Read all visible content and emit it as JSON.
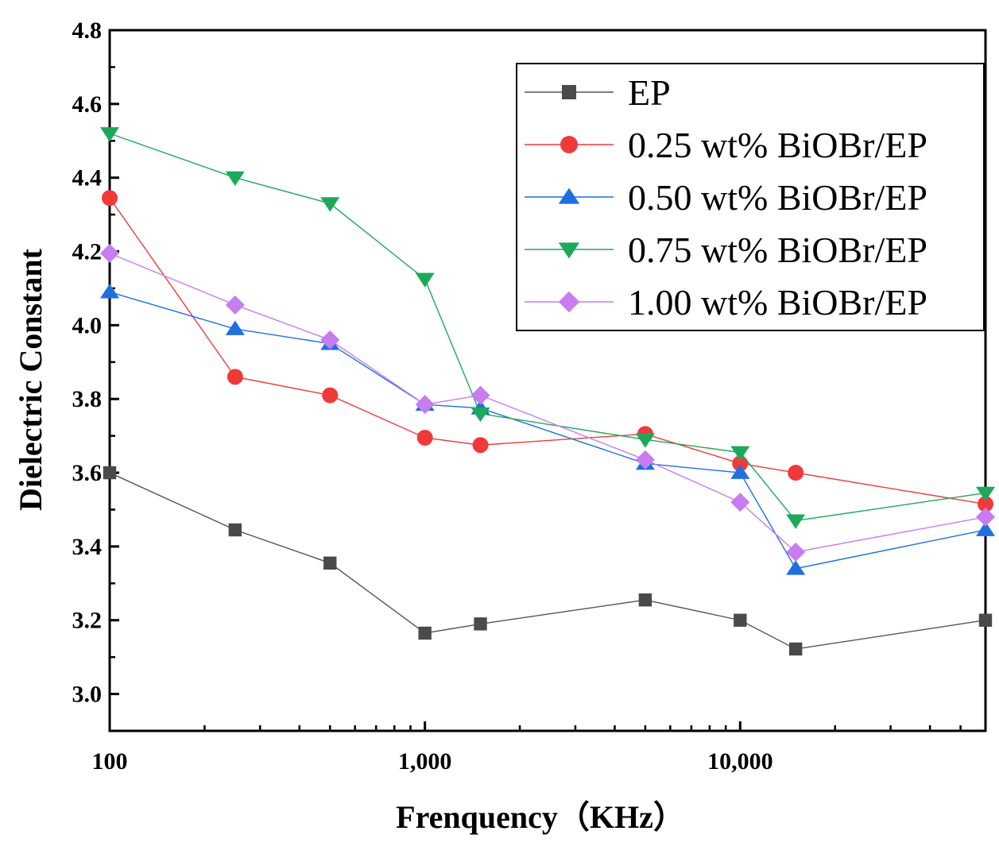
{
  "chart_data": {
    "type": "line",
    "title": "",
    "xlabel": "Frenquency（KHz）",
    "ylabel": "Dielectric Constant",
    "xscale": "log",
    "xlim": [
      100,
      60000
    ],
    "ylim": [
      2.9,
      4.8
    ],
    "grid": false,
    "legend_position": "top-right",
    "x": [
      100,
      250,
      500,
      1000,
      1500,
      5000,
      10000,
      15000,
      60000
    ],
    "x_ticks": [
      {
        "value": 100,
        "label": "100"
      },
      {
        "value": 1000,
        "label": "1,000"
      },
      {
        "value": 10000,
        "label": "10,000"
      }
    ],
    "y_ticks": [
      {
        "value": 3.0,
        "label": "3.0"
      },
      {
        "value": 3.2,
        "label": "3.2"
      },
      {
        "value": 3.4,
        "label": "3.4"
      },
      {
        "value": 3.6,
        "label": "3.6"
      },
      {
        "value": 3.8,
        "label": "3.8"
      },
      {
        "value": 4.0,
        "label": "4.0"
      },
      {
        "value": 4.2,
        "label": "4.2"
      },
      {
        "value": 4.4,
        "label": "4.4"
      },
      {
        "value": 4.6,
        "label": "4.6"
      },
      {
        "value": 4.8,
        "label": "4.8"
      }
    ],
    "series": [
      {
        "name": "EP",
        "marker": "square",
        "color": "#4a4a4a",
        "line_color": "#555555",
        "values": [
          3.6,
          3.445,
          3.355,
          3.165,
          3.19,
          3.255,
          3.2,
          3.122,
          3.2
        ]
      },
      {
        "name": "0.25 wt% BiOBr/EP",
        "marker": "circle",
        "color": "#f03a3a",
        "line_color": "#f03a3a",
        "values": [
          4.345,
          3.86,
          3.81,
          3.695,
          3.675,
          3.705,
          3.625,
          3.6,
          3.515
        ]
      },
      {
        "name": "0.50 wt% BiOBr/EP",
        "marker": "triangle-up",
        "color": "#1f6fe0",
        "line_color": "#1f6fe0",
        "values": [
          4.09,
          3.99,
          3.95,
          3.785,
          3.775,
          3.625,
          3.6,
          3.34,
          3.445
        ]
      },
      {
        "name": "0.75 wt% BiOBr/EP",
        "marker": "triangle-down",
        "color": "#1fa85a",
        "line_color": "#1fa85a",
        "values": [
          4.52,
          4.4,
          4.33,
          4.125,
          3.76,
          3.69,
          3.655,
          3.47,
          3.545
        ]
      },
      {
        "name": "1.00 wt% BiOBr/EP",
        "marker": "diamond",
        "color": "#c77cf0",
        "line_color": "#c77cf0",
        "values": [
          4.195,
          4.055,
          3.96,
          3.785,
          3.81,
          3.635,
          3.52,
          3.385,
          3.48
        ]
      }
    ]
  }
}
